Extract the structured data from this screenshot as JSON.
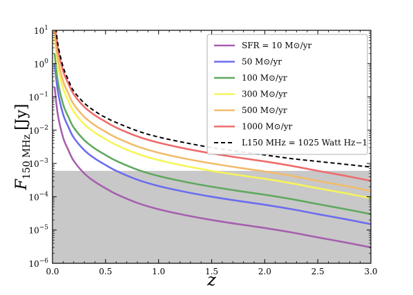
{
  "chart_data": {
    "type": "line",
    "xlabel": "z",
    "ylabel": "F150 MHz [Jy]",
    "ylabel_parts": {
      "main": "F",
      "sub": "150 MHz",
      "unit": "[Jy]"
    },
    "xlim": [
      0.0,
      3.0
    ],
    "ylim": [
      1e-06,
      10
    ],
    "yscale": "log",
    "grid": false,
    "legend_position": "top-right",
    "x_ticks": [
      {
        "value": 0.0,
        "label": "0.0"
      },
      {
        "value": 0.5,
        "label": "0.5"
      },
      {
        "value": 1.0,
        "label": "1.0"
      },
      {
        "value": 1.5,
        "label": "1.5"
      },
      {
        "value": 2.0,
        "label": "2.0"
      },
      {
        "value": 2.5,
        "label": "2.5"
      },
      {
        "value": 3.0,
        "label": "3.0"
      }
    ],
    "y_ticks": [
      {
        "value": 10,
        "base": "10",
        "exp": "1"
      },
      {
        "value": 1,
        "base": "10",
        "exp": "0"
      },
      {
        "value": 0.1,
        "base": "10",
        "exp": "−1"
      },
      {
        "value": 0.01,
        "base": "10",
        "exp": "−2"
      },
      {
        "value": 0.001,
        "base": "10",
        "exp": "−3"
      },
      {
        "value": 0.0001,
        "base": "10",
        "exp": "−4"
      },
      {
        "value": 1e-05,
        "base": "10",
        "exp": "−5"
      },
      {
        "value": 1e-06,
        "base": "10",
        "exp": "−6"
      }
    ],
    "shaded_region": {
      "y_from": 1e-06,
      "y_to": 0.0006,
      "color": "#c8c8c8"
    },
    "x": [
      0.02,
      0.05,
      0.1,
      0.15,
      0.2,
      0.3,
      0.4,
      0.5,
      0.6,
      0.8,
      1.0,
      1.25,
      1.5,
      1.75,
      2.0,
      2.25,
      2.5,
      2.75,
      3.0
    ],
    "series": [
      {
        "name": "SFR = 10 M⊙/yr",
        "color": "#a65fae",
        "style": "solid",
        "values": [
          0.2,
          0.03,
          0.006,
          0.0025,
          0.0012,
          0.0005,
          0.00028,
          0.00018,
          0.00012,
          6.5e-05,
          4.2e-05,
          2.8e-05,
          2e-05,
          1.5e-05,
          1.15e-05,
          8.5e-06,
          6e-06,
          4.3e-06,
          3e-06
        ]
      },
      {
        "name": "50 M⊙/yr",
        "color": "#6b6cf0",
        "style": "solid",
        "values": [
          1.0,
          0.15,
          0.03,
          0.0125,
          0.006,
          0.0025,
          0.0014,
          0.0009,
          0.0006,
          0.000325,
          0.00021,
          0.00014,
          0.0001,
          7.5e-05,
          5.75e-05,
          4.25e-05,
          3e-05,
          2.15e-05,
          1.5e-05
        ]
      },
      {
        "name": "100 M⊙/yr",
        "color": "#5fa85f",
        "style": "solid",
        "values": [
          2.0,
          0.3,
          0.06,
          0.025,
          0.012,
          0.005,
          0.0028,
          0.0018,
          0.0012,
          0.00065,
          0.00042,
          0.00028,
          0.0002,
          0.00015,
          0.000115,
          8.5e-05,
          6e-05,
          4.3e-05,
          3e-05
        ]
      },
      {
        "name": "300 M⊙/yr",
        "color": "#f5f55a",
        "style": "solid",
        "values": [
          6.0,
          0.9,
          0.18,
          0.075,
          0.036,
          0.015,
          0.0084,
          0.0054,
          0.0036,
          0.00195,
          0.00126,
          0.00084,
          0.0006,
          0.00045,
          0.000345,
          0.000255,
          0.00018,
          0.000129,
          9e-05
        ]
      },
      {
        "name": "500 M⊙/yr",
        "color": "#f2bb6b",
        "style": "solid",
        "values": [
          10.0,
          1.5,
          0.3,
          0.125,
          0.06,
          0.025,
          0.014,
          0.009,
          0.006,
          0.00325,
          0.0021,
          0.0014,
          0.001,
          0.00075,
          0.000575,
          0.000425,
          0.0003,
          0.000215,
          0.00015
        ]
      },
      {
        "name": "1000 M⊙/yr",
        "color": "#ee6b6b",
        "style": "solid",
        "values": [
          20.0,
          3.0,
          0.6,
          0.25,
          0.12,
          0.05,
          0.028,
          0.018,
          0.012,
          0.0065,
          0.0042,
          0.0028,
          0.002,
          0.0015,
          0.00115,
          0.00085,
          0.0006,
          0.00043,
          0.0003
        ]
      },
      {
        "name": "L150 MHz = 1025 Watt Hz−1",
        "color": "#000000",
        "style": "dashed",
        "values": [
          30.0,
          4.0,
          0.8,
          0.32,
          0.15,
          0.065,
          0.037,
          0.024,
          0.017,
          0.0095,
          0.0062,
          0.0042,
          0.003,
          0.0023,
          0.0018,
          0.0014,
          0.00115,
          0.00095,
          0.00078
        ]
      }
    ]
  },
  "legend": {
    "items": [
      {
        "label": "SFR = 10 M⊙/yr",
        "color": "#a65fae",
        "style": "solid"
      },
      {
        "label": "50 M⊙/yr",
        "color": "#6b6cf0",
        "style": "solid"
      },
      {
        "label": "100 M⊙/yr",
        "color": "#5fa85f",
        "style": "solid"
      },
      {
        "label": "300 M⊙/yr",
        "color": "#f5f55a",
        "style": "solid"
      },
      {
        "label": "500 M⊙/yr",
        "color": "#f2bb6b",
        "style": "solid"
      },
      {
        "label": "1000 M⊙/yr",
        "color": "#ee6b6b",
        "style": "solid"
      },
      {
        "label": "L150 MHz = 1025 Watt Hz−1",
        "color": "#000000",
        "style": "dashed"
      }
    ]
  },
  "colors": {
    "background": "#ffffff",
    "axis": "#000000",
    "shade": "#c8c8c8"
  }
}
